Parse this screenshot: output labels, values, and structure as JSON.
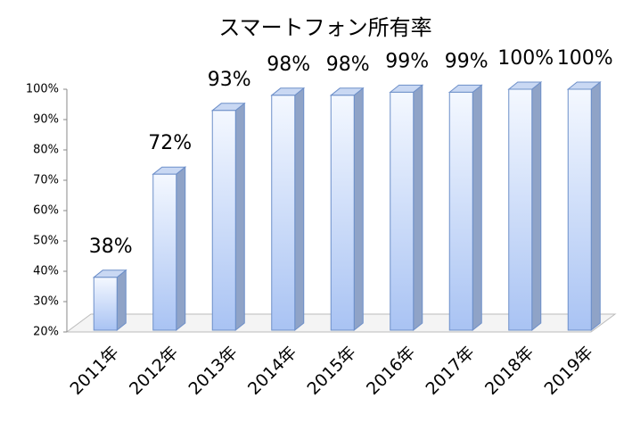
{
  "chart_data": {
    "type": "bar3d",
    "title": "スマートフォン所有率",
    "categories": [
      "2011年",
      "2012年",
      "2013年",
      "2014年",
      "2015年",
      "2016年",
      "2017年",
      "2018年",
      "2019年"
    ],
    "values": [
      38,
      72,
      93,
      98,
      98,
      99,
      99,
      100,
      100
    ],
    "value_labels": [
      "38%",
      "72%",
      "93%",
      "98%",
      "98%",
      "99%",
      "99%",
      "100%",
      "100%"
    ],
    "color": "#9db9f0",
    "ylim": [
      20,
      100
    ],
    "yticks": [
      {
        "value": 20,
        "label": "20%"
      },
      {
        "value": 30,
        "label": "30%"
      },
      {
        "value": 40,
        "label": "40%"
      },
      {
        "value": 50,
        "label": "50%"
      },
      {
        "value": 60,
        "label": "60%"
      },
      {
        "value": 70,
        "label": "70%"
      },
      {
        "value": 80,
        "label": "80%"
      },
      {
        "value": 90,
        "label": "90%"
      },
      {
        "value": 100,
        "label": "100%"
      }
    ]
  }
}
